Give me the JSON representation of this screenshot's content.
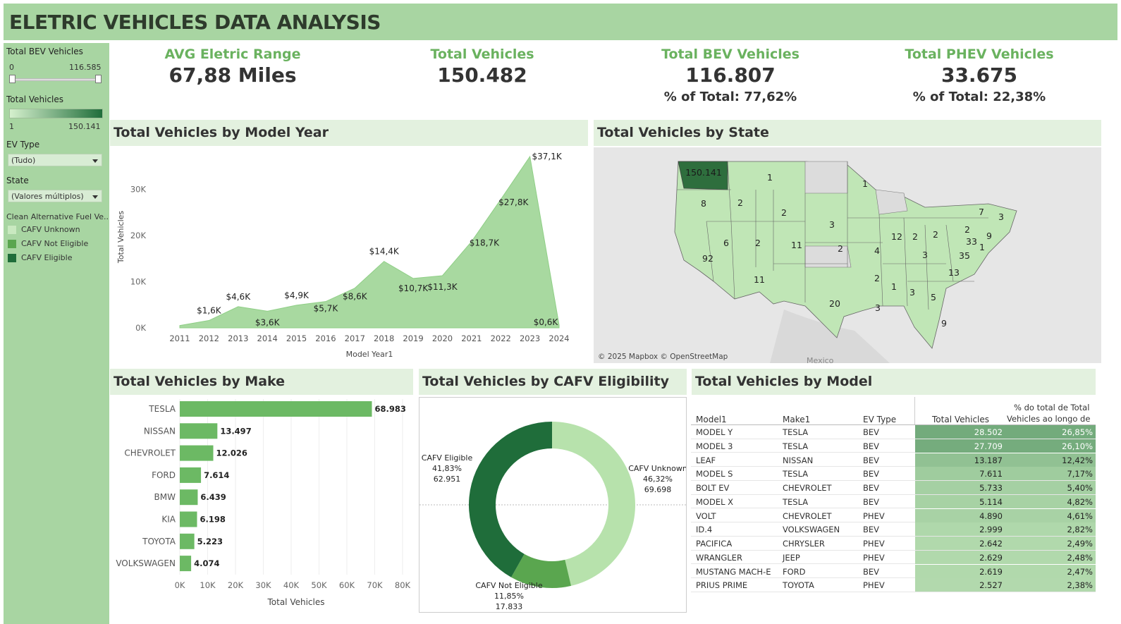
{
  "header": {
    "title": "ELETRIC VEHICLES DATA ANALYSIS"
  },
  "sidebar": {
    "bev_filter": {
      "label": "Total BEV Vehicles",
      "min": "0",
      "max": "116.585"
    },
    "vehicles_legend": {
      "label": "Total Vehicles",
      "min": "1",
      "max": "150.141"
    },
    "ev_type": {
      "label": "EV Type",
      "value": "(Tudo)"
    },
    "state": {
      "label": "State",
      "value": "(Valores múltiplos)"
    },
    "cafv_legend": {
      "label": "Clean Alternative Fuel Ve..",
      "items": [
        {
          "label": "CAFV Unknown",
          "color": "#c9e9c0"
        },
        {
          "label": "CAFV Not Eligible",
          "color": "#5aa64f"
        },
        {
          "label": "CAFV Eligible",
          "color": "#1f6d3a"
        }
      ]
    }
  },
  "kpis": [
    {
      "title": "AVG Eletric Range",
      "value": "67,88 Miles",
      "pct": ""
    },
    {
      "title": "Total Vehicles",
      "value": "150.482",
      "pct": ""
    },
    {
      "title": "Total BEV Vehicles",
      "value": "116.807",
      "pct": "% of Total: 77,62%"
    },
    {
      "title": "Total PHEV Vehicles",
      "value": "33.675",
      "pct": "% of Total: 22,38%"
    }
  ],
  "panels": {
    "year": "Total Vehicles by Model Year",
    "state": "Total Vehicles by State",
    "make": "Total Vehicles by Make",
    "cafv": "Total Vehicles by CAFV Eligibility",
    "model": "Total Vehicles by Model"
  },
  "colors": {
    "accent": "#6ab25f",
    "area": "#a8d9a0",
    "bar": "#6cb964",
    "dark": "#1f6d3a"
  },
  "chart_data": [
    {
      "type": "area",
      "xlabel": "Model Year1",
      "ylabel": "Total Vehicles",
      "x": [
        "2011",
        "2012",
        "2013",
        "2014",
        "2015",
        "2016",
        "2017",
        "2018",
        "2019",
        "2020",
        "2021",
        "2022",
        "2023",
        "2024"
      ],
      "values": [
        0.5,
        1.6,
        4.6,
        3.6,
        4.9,
        5.7,
        8.6,
        14.4,
        10.7,
        11.3,
        18.7,
        27.8,
        37.1,
        0.6
      ],
      "labels": [
        "",
        "$1,6K",
        "$4,6K",
        "$3,6K",
        "$4,9K",
        "$5,7K",
        "$8,6K",
        "$14,4K",
        "$10,7K",
        "$11,3K",
        "$18,7K",
        "$27,8K",
        "$37,1K",
        "$0,6K"
      ],
      "yticks": [
        "0K",
        "10K",
        "20K",
        "30K"
      ],
      "ylim": [
        0,
        37.1
      ]
    },
    {
      "type": "bar",
      "xlabel": "Total Vehicles",
      "categories": [
        "TESLA",
        "NISSAN",
        "CHEVROLET",
        "FORD",
        "BMW",
        "KIA",
        "TOYOTA",
        "VOLKSWAGEN"
      ],
      "values": [
        68983,
        13497,
        12026,
        7614,
        6439,
        6198,
        5223,
        4074
      ],
      "labels": [
        "68.983",
        "13.497",
        "12.026",
        "7.614",
        "6.439",
        "6.198",
        "5.223",
        "4.074"
      ],
      "xticks": [
        "0K",
        "10K",
        "20K",
        "30K",
        "40K",
        "50K",
        "60K",
        "70K",
        "80K"
      ],
      "xlim": [
        0,
        80000
      ]
    },
    {
      "type": "pie",
      "slices": [
        {
          "name": "CAFV Unknown",
          "pct": 46.32,
          "pct_label": "46,32%",
          "value_label": "69.698"
        },
        {
          "name": "CAFV Not Eligible",
          "pct": 11.85,
          "pct_label": "11,85%",
          "value_label": "17.833"
        },
        {
          "name": "CAFV Eligible",
          "pct": 41.83,
          "pct_label": "41,83%",
          "value_label": "62.951"
        }
      ]
    }
  ],
  "map": {
    "attribution": "© 2025 Mapbox © OpenStreetMap",
    "mexico": "Mexico",
    "state_labels": [
      "150.141",
      "1",
      "1",
      "8",
      "2",
      "2",
      "3",
      "7",
      "3",
      "2",
      "6",
      "2",
      "11",
      "12",
      "2",
      "2",
      "2",
      "33",
      "9",
      "92",
      "4",
      "3",
      "35",
      "1",
      "13",
      "11",
      "2",
      "1",
      "3",
      "5",
      "20",
      "3",
      "9"
    ]
  },
  "model_table": {
    "headers": {
      "model": "Model1",
      "make": "Make1",
      "ev": "EV Type",
      "total": "Total Vehicles",
      "pct_line1": "% do total de Total",
      "pct_line2": "Vehicles ao longo de .."
    },
    "rows": [
      {
        "model": "MODEL Y",
        "make": "TESLA",
        "ev": "BEV",
        "total": "28.502",
        "pct": "26,85%",
        "v": 28502
      },
      {
        "model": "MODEL 3",
        "make": "TESLA",
        "ev": "BEV",
        "total": "27.709",
        "pct": "26,10%",
        "v": 27709
      },
      {
        "model": "LEAF",
        "make": "NISSAN",
        "ev": "BEV",
        "total": "13.187",
        "pct": "12,42%",
        "v": 13187
      },
      {
        "model": "MODEL S",
        "make": "TESLA",
        "ev": "BEV",
        "total": "7.611",
        "pct": "7,17%",
        "v": 7611
      },
      {
        "model": "BOLT EV",
        "make": "CHEVROLET",
        "ev": "BEV",
        "total": "5.733",
        "pct": "5,40%",
        "v": 5733
      },
      {
        "model": "MODEL X",
        "make": "TESLA",
        "ev": "BEV",
        "total": "5.114",
        "pct": "4,82%",
        "v": 5114
      },
      {
        "model": "VOLT",
        "make": "CHEVROLET",
        "ev": "PHEV",
        "total": "4.890",
        "pct": "4,61%",
        "v": 4890
      },
      {
        "model": "ID.4",
        "make": "VOLKSWAGEN",
        "ev": "BEV",
        "total": "2.999",
        "pct": "2,82%",
        "v": 2999
      },
      {
        "model": "PACIFICA",
        "make": "CHRYSLER",
        "ev": "PHEV",
        "total": "2.642",
        "pct": "2,49%",
        "v": 2642
      },
      {
        "model": "WRANGLER",
        "make": "JEEP",
        "ev": "PHEV",
        "total": "2.629",
        "pct": "2,48%",
        "v": 2629
      },
      {
        "model": "MUSTANG MACH-E",
        "make": "FORD",
        "ev": "BEV",
        "total": "2.619",
        "pct": "2,47%",
        "v": 2619
      },
      {
        "model": "PRIUS PRIME",
        "make": "TOYOTA",
        "ev": "PHEV",
        "total": "2.527",
        "pct": "2,38%",
        "v": 2527
      }
    ]
  }
}
